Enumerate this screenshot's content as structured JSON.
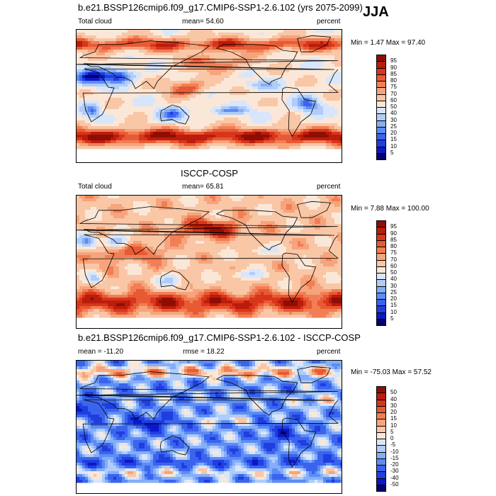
{
  "season": "JJA",
  "colors": {
    "positive_scale": [
      "#08006b",
      "#0a18c8",
      "#1f3ee0",
      "#3a64ee",
      "#5c8cf5",
      "#86aef7",
      "#b0ccf8",
      "#d8e6fb",
      "#fbe7d7",
      "#f9c6a6",
      "#f6a47c",
      "#f27e55",
      "#e85a34",
      "#d8361b",
      "#bb1c0c",
      "#8f0e04"
    ],
    "diff_scale": [
      "#08006b",
      "#0a18c8",
      "#1f3ee0",
      "#3a64ee",
      "#5c8cf5",
      "#86aef7",
      "#b0ccf8",
      "#d8e6fb",
      "#fbe7d7",
      "#f9c6a6",
      "#f6a47c",
      "#f27e55",
      "#e85a34",
      "#d8361b",
      "#bb1c0c",
      "#8f0e04"
    ]
  },
  "chart_data": [
    {
      "type": "heatmap",
      "title": "b.e21.BSSP126cmip6.f09_g17.CMIP6-SSP1-2.6.102 (yrs 2075-2099)",
      "left_label": "Total cloud",
      "center_label": "mean=  54.60",
      "right_label": "percent",
      "minmax": "Min =   1.47 Max =  97.40",
      "levels": [
        "5",
        "10",
        "15",
        "20",
        "25",
        "30",
        "40",
        "50",
        "60",
        "70",
        "75",
        "80",
        "85",
        "90",
        "95"
      ],
      "mean": 54.6,
      "min": 1.47,
      "max": 97.4
    },
    {
      "type": "heatmap",
      "title": "ISCCP-COSP",
      "left_label": "Total cloud",
      "center_label": "mean=  65.81",
      "right_label": "percent",
      "minmax": "Min =   7.88 Max = 100.00",
      "levels": [
        "5",
        "10",
        "15",
        "20",
        "25",
        "30",
        "40",
        "50",
        "60",
        "70",
        "75",
        "80",
        "85",
        "90",
        "95"
      ],
      "mean": 65.81,
      "min": 7.88,
      "max": 100.0
    },
    {
      "type": "heatmap",
      "title": "b.e21.BSSP126cmip6.f09_g17.CMIP6-SSP1-2.6.102 - ISCCP-COSP",
      "left_label": "mean = -11.20",
      "center_label": "rmse =  18.22",
      "right_label": "percent",
      "minmax": "Min = -75.03 Max =  57.52",
      "levels": [
        "-50",
        "-40",
        "-30",
        "-20",
        "-15",
        "-10",
        "-5",
        "0",
        "5",
        "10",
        "15",
        "20",
        "30",
        "40",
        "50"
      ],
      "mean": -11.2,
      "rmse": 18.22,
      "min": -75.03,
      "max": 57.52
    }
  ]
}
